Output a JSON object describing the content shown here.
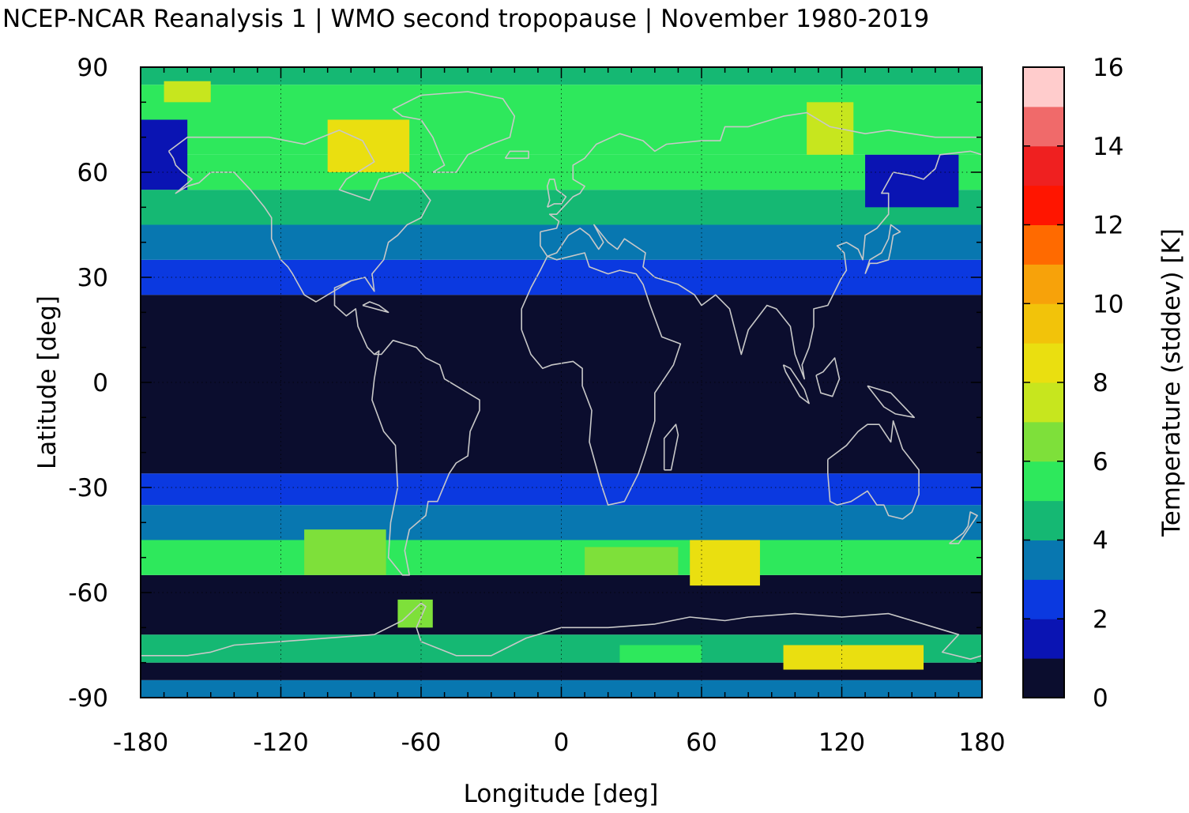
{
  "title": "NCEP-NCAR Reanalysis 1 | WMO second tropopause | November 1980-2019",
  "chart_data": {
    "type": "heatmap",
    "title": "NCEP-NCAR Reanalysis 1 | WMO second tropopause | November 1980-2019",
    "xlabel": "Longitude [deg]",
    "ylabel": "Latitude [deg]",
    "colorbar_label": "Temperature (stddev) [K]",
    "xlim": [
      -180,
      180
    ],
    "ylim": [
      -90,
      90
    ],
    "x_ticks": [
      -180,
      -120,
      -60,
      0,
      60,
      120,
      180
    ],
    "y_ticks": [
      -90,
      -60,
      -30,
      0,
      30,
      60,
      90
    ],
    "x_tick_labels": [
      "-180",
      "-120",
      "-60",
      "0",
      "60",
      "120",
      "180"
    ],
    "y_tick_labels": [
      "-90",
      "-60",
      "-30",
      "0",
      "30",
      "60",
      "90"
    ],
    "grid": true,
    "coastlines": true,
    "colorbar": {
      "range": [
        0,
        16
      ],
      "ticks": [
        "0",
        "2",
        "4",
        "6",
        "8",
        "10",
        "12",
        "14",
        "16"
      ],
      "colors": [
        "#0b0d2e",
        "#0a14b3",
        "#0b39e0",
        "#0877b0",
        "#15b873",
        "#2ee85c",
        "#7ee03a",
        "#c7e61e",
        "#eadf10",
        "#f2c30a",
        "#f7a20a",
        "#ff6a00",
        "#ff1500",
        "#ef2020",
        "#f06a6a",
        "#ffcccc"
      ]
    },
    "lat_bands": [
      {
        "lat": [
          -90,
          -85
        ],
        "value": 3.5
      },
      {
        "lat": [
          -85,
          -80
        ],
        "value": 0.5
      },
      {
        "lat": [
          -80,
          -72
        ],
        "value": 4.5
      },
      {
        "lat": [
          -72,
          -55
        ],
        "value": 0.5
      },
      {
        "lat": [
          -55,
          -45
        ],
        "value": 5.0
      },
      {
        "lat": [
          -45,
          -35
        ],
        "value": 3.5
      },
      {
        "lat": [
          -35,
          -26
        ],
        "value": 2.5
      },
      {
        "lat": [
          -26,
          25
        ],
        "value": 0.5
      },
      {
        "lat": [
          25,
          30
        ],
        "value": 2.5
      },
      {
        "lat": [
          30,
          35
        ],
        "value": 2.8
      },
      {
        "lat": [
          35,
          45
        ],
        "value": 3.5
      },
      {
        "lat": [
          45,
          55
        ],
        "value": 4.0
      },
      {
        "lat": [
          55,
          65
        ],
        "value": 5.0
      },
      {
        "lat": [
          65,
          75
        ],
        "value": 5.8
      },
      {
        "lat": [
          75,
          85
        ],
        "value": 5.2
      },
      {
        "lat": [
          85,
          90
        ],
        "value": 4.8
      }
    ],
    "anomalies": [
      {
        "lon": [
          -100,
          -65
        ],
        "lat": [
          60,
          75
        ],
        "value": 8.0
      },
      {
        "lon": [
          105,
          125
        ],
        "lat": [
          65,
          80
        ],
        "value": 7.0
      },
      {
        "lon": [
          -170,
          -150
        ],
        "lat": [
          80,
          86
        ],
        "value": 7.0
      },
      {
        "lon": [
          -180,
          -160
        ],
        "lat": [
          55,
          75
        ],
        "value": 1.5
      },
      {
        "lon": [
          130,
          170
        ],
        "lat": [
          50,
          65
        ],
        "value": 1.5
      },
      {
        "lon": [
          -110,
          -75
        ],
        "lat": [
          -55,
          -42
        ],
        "value": 6.5
      },
      {
        "lon": [
          55,
          85
        ],
        "lat": [
          -58,
          -45
        ],
        "value": 8.5
      },
      {
        "lon": [
          10,
          50
        ],
        "lat": [
          -55,
          -47
        ],
        "value": 6.0
      },
      {
        "lon": [
          95,
          155
        ],
        "lat": [
          -82,
          -75
        ],
        "value": 8.0
      },
      {
        "lon": [
          -70,
          -55
        ],
        "lat": [
          -70,
          -62
        ],
        "value": 6.5
      },
      {
        "lon": [
          25,
          60
        ],
        "lat": [
          -80,
          -75
        ],
        "value": 5.0
      }
    ]
  }
}
